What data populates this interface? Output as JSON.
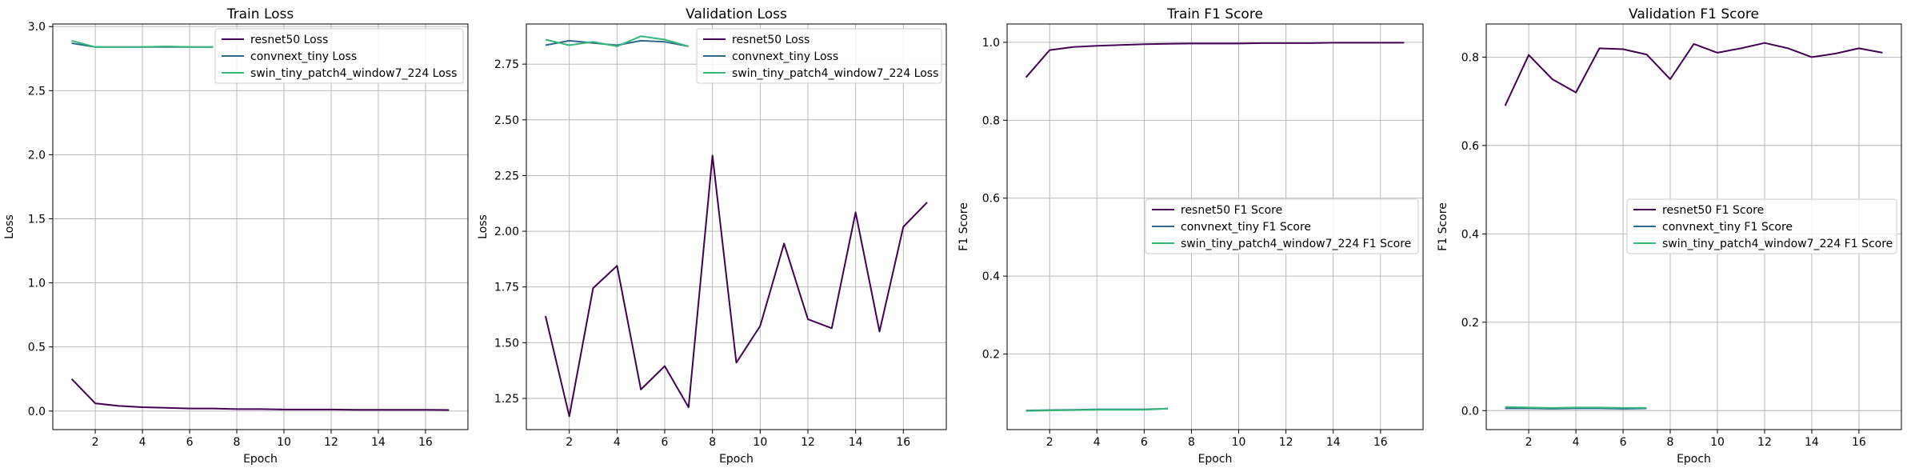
{
  "chart_data": [
    {
      "type": "line",
      "title": "Train Loss",
      "xlabel": "Epoch",
      "ylabel": "Loss",
      "xlim": [
        0.2,
        17.8
      ],
      "ylim": [
        -0.145,
        3.02
      ],
      "xticks": [
        2,
        4,
        6,
        8,
        10,
        12,
        14,
        16
      ],
      "yticks": [
        0.0,
        0.5,
        1.0,
        1.5,
        2.0,
        2.5,
        3.0
      ],
      "ytick_labels": [
        "0.0",
        "0.5",
        "1.0",
        "1.5",
        "2.0",
        "2.5",
        "3.0"
      ],
      "grid": true,
      "legend_position": "top-right",
      "series": [
        {
          "name": "resnet50 Loss",
          "color": "#440154",
          "x": [
            1,
            2,
            3,
            4,
            5,
            6,
            7,
            8,
            9,
            10,
            11,
            12,
            13,
            14,
            15,
            16,
            17
          ],
          "y": [
            0.25,
            0.06,
            0.04,
            0.03,
            0.025,
            0.02,
            0.02,
            0.015,
            0.015,
            0.012,
            0.012,
            0.012,
            0.01,
            0.01,
            0.01,
            0.01,
            0.008
          ]
        },
        {
          "name": "convnext_tiny Loss",
          "color": "#31688e",
          "x": [
            1,
            2,
            3,
            4,
            5,
            6,
            7
          ],
          "y": [
            2.87,
            2.84,
            2.84,
            2.84,
            2.84,
            2.84,
            2.84
          ]
        },
        {
          "name": "swin_tiny_patch4_window7_224 Loss",
          "color": "#35b779",
          "x": [
            1,
            2,
            3,
            4,
            5,
            6,
            7
          ],
          "y": [
            2.89,
            2.84,
            2.84,
            2.84,
            2.845,
            2.84,
            2.84
          ]
        }
      ]
    },
    {
      "type": "line",
      "title": "Validation Loss",
      "xlabel": "Epoch",
      "ylabel": "Loss",
      "xlim": [
        0.2,
        17.8
      ],
      "ylim": [
        1.11,
        2.93
      ],
      "xticks": [
        2,
        4,
        6,
        8,
        10,
        12,
        14,
        16
      ],
      "yticks": [
        1.25,
        1.5,
        1.75,
        2.0,
        2.25,
        2.5,
        2.75
      ],
      "ytick_labels": [
        "1.25",
        "1.50",
        "1.75",
        "2.00",
        "2.25",
        "2.50",
        "2.75"
      ],
      "grid": true,
      "legend_position": "top-right",
      "series": [
        {
          "name": "resnet50 Loss",
          "color": "#440154",
          "x": [
            1,
            2,
            3,
            4,
            5,
            6,
            7,
            8,
            9,
            10,
            11,
            12,
            13,
            14,
            15,
            16,
            17
          ],
          "y": [
            1.62,
            1.17,
            1.745,
            1.845,
            1.29,
            1.395,
            1.21,
            2.34,
            1.41,
            1.575,
            1.945,
            1.605,
            1.565,
            2.085,
            1.55,
            2.02,
            2.13
          ]
        },
        {
          "name": "convnext_tiny Loss",
          "color": "#31688e",
          "x": [
            1,
            2,
            3,
            4,
            5,
            6,
            7
          ],
          "y": [
            2.835,
            2.855,
            2.845,
            2.835,
            2.855,
            2.85,
            2.83
          ]
        },
        {
          "name": "swin_tiny_patch4_window7_224 Loss",
          "color": "#35b779",
          "x": [
            1,
            2,
            3,
            4,
            5,
            6,
            7
          ],
          "y": [
            2.86,
            2.835,
            2.85,
            2.83,
            2.875,
            2.86,
            2.83
          ]
        }
      ]
    },
    {
      "type": "line",
      "title": "Train F1 Score",
      "xlabel": "Epoch",
      "ylabel": "F1 Score",
      "xlim": [
        0.2,
        17.8
      ],
      "ylim": [
        0.006,
        1.047
      ],
      "xticks": [
        2,
        4,
        6,
        8,
        10,
        12,
        14,
        16
      ],
      "yticks": [
        0.2,
        0.4,
        0.6,
        0.8,
        1.0
      ],
      "ytick_labels": [
        "0.2",
        "0.4",
        "0.6",
        "0.8",
        "1.0"
      ],
      "grid": true,
      "legend_position": "center-right",
      "series": [
        {
          "name": "resnet50 F1 Score",
          "color": "#440154",
          "x": [
            1,
            2,
            3,
            4,
            5,
            6,
            7,
            8,
            9,
            10,
            11,
            12,
            13,
            14,
            15,
            16,
            17
          ],
          "y": [
            0.91,
            0.98,
            0.988,
            0.991,
            0.993,
            0.995,
            0.996,
            0.997,
            0.997,
            0.997,
            0.998,
            0.998,
            0.998,
            0.999,
            0.999,
            0.999,
            0.999
          ]
        },
        {
          "name": "convnext_tiny F1 Score",
          "color": "#31688e",
          "x": [
            1,
            2,
            3,
            4,
            5,
            6,
            7
          ],
          "y": [
            0.055,
            0.056,
            0.057,
            0.058,
            0.058,
            0.058,
            0.06
          ]
        },
        {
          "name": "swin_tiny_patch4_window7_224 F1 Score",
          "color": "#35b779",
          "x": [
            1,
            2,
            3,
            4,
            5,
            6,
            7
          ],
          "y": [
            0.054,
            0.055,
            0.056,
            0.057,
            0.057,
            0.057,
            0.06
          ]
        }
      ]
    },
    {
      "type": "line",
      "title": "Validation F1 Score",
      "xlabel": "Epoch",
      "ylabel": "F1 Score",
      "xlim": [
        0.2,
        17.8
      ],
      "ylim": [
        -0.043,
        0.875
      ],
      "xticks": [
        2,
        4,
        6,
        8,
        10,
        12,
        14,
        16
      ],
      "yticks": [
        0.0,
        0.2,
        0.4,
        0.6,
        0.8
      ],
      "ytick_labels": [
        "0.0",
        "0.2",
        "0.4",
        "0.6",
        "0.8"
      ],
      "grid": true,
      "legend_position": "center-right",
      "series": [
        {
          "name": "resnet50 F1 Score",
          "color": "#440154",
          "x": [
            1,
            2,
            3,
            4,
            5,
            6,
            7,
            8,
            9,
            10,
            11,
            12,
            13,
            14,
            15,
            16,
            17
          ],
          "y": [
            0.69,
            0.805,
            0.75,
            0.72,
            0.82,
            0.818,
            0.806,
            0.75,
            0.83,
            0.81,
            0.82,
            0.832,
            0.82,
            0.8,
            0.808,
            0.82,
            0.81
          ]
        },
        {
          "name": "convnext_tiny F1 Score",
          "color": "#31688e",
          "x": [
            1,
            2,
            3,
            4,
            5,
            6,
            7
          ],
          "y": [
            0.005,
            0.005,
            0.004,
            0.005,
            0.005,
            0.004,
            0.005
          ]
        },
        {
          "name": "swin_tiny_patch4_window7_224 F1 Score",
          "color": "#35b779",
          "x": [
            1,
            2,
            3,
            4,
            5,
            6,
            7
          ],
          "y": [
            0.008,
            0.007,
            0.006,
            0.007,
            0.007,
            0.006,
            0.006
          ]
        }
      ]
    }
  ]
}
